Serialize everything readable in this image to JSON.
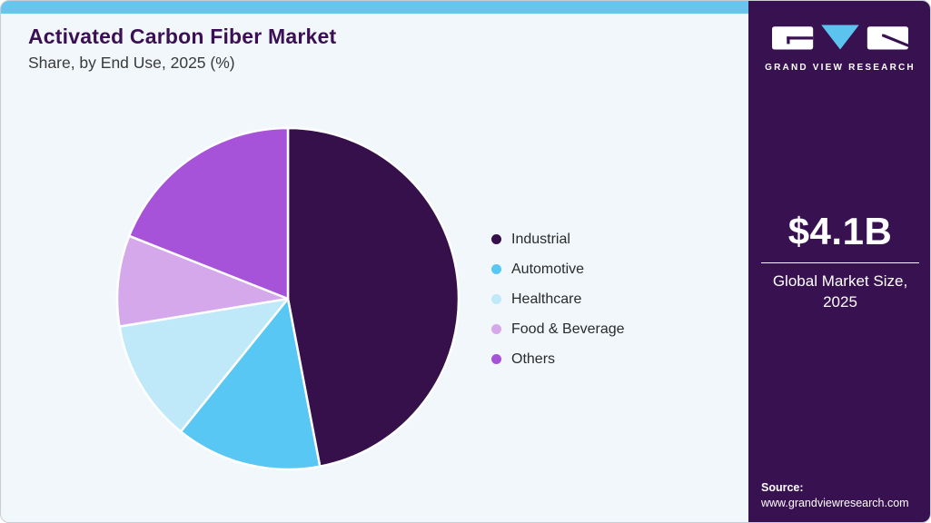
{
  "header": {
    "title": "Activated Carbon Fiber Market",
    "subtitle": "Share, by End Use, 2025 (%)"
  },
  "chart_data": {
    "type": "pie",
    "title": "Activated Carbon Fiber Market Share, by End Use, 2025 (%)",
    "unit": "%",
    "start_angle_deg": 0,
    "direction": "clockwise",
    "legend_position": "right",
    "series": [
      {
        "name": "Industrial",
        "value": 47.0,
        "color": "#36104A"
      },
      {
        "name": "Automotive",
        "value": 13.8,
        "color": "#58C7F3"
      },
      {
        "name": "Healthcare",
        "value": 11.6,
        "color": "#BFE8F9"
      },
      {
        "name": "Food & Beverage",
        "value": 8.6,
        "color": "#D4A8EA"
      },
      {
        "name": "Others",
        "value": 19.0,
        "color": "#A753D9"
      }
    ]
  },
  "sidebar": {
    "brand_name": "GRAND VIEW RESEARCH",
    "market_size": "$4.1B",
    "market_size_caption": "Global Market Size, 2025",
    "source_label": "Source:",
    "source_url": "www.grandviewresearch.com"
  },
  "colors": {
    "accent_bar": "#68C6EC",
    "card_background": "#F1F7FB",
    "sidebar_background": "#381150",
    "title_text": "#3A0F54",
    "logo_triangle": "#5BC3EE",
    "pie_stroke": "#FFFFFF"
  }
}
